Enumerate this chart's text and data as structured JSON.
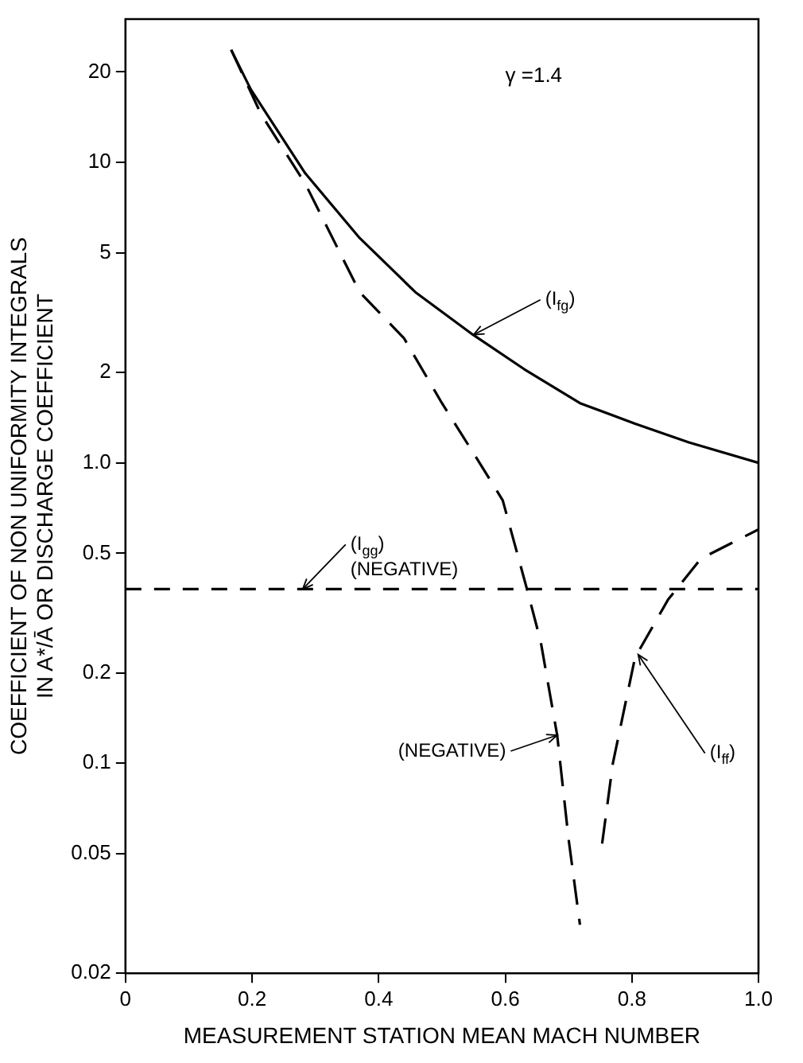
{
  "chart_data": {
    "type": "line",
    "xlabel": "MEASUREMENT STATION MEAN MACH NUMBER",
    "ylabel": "COEFFICIENT OF NON UNIFORMITY INTEGRALS IN A*/Ā OR DISCHARGE COEFFICIENT",
    "log": "y",
    "xlim": [
      0,
      1
    ],
    "ylim": [
      0.02,
      30
    ],
    "xticks": [
      0,
      0.2,
      0.4,
      0.6,
      0.8,
      {
        "value": 1,
        "label": "1.0"
      }
    ],
    "yticks": [
      0.02,
      0.05,
      0.1,
      0.2,
      0.5,
      {
        "value": 1,
        "label": "1.0"
      },
      2,
      5,
      10,
      20
    ],
    "grid": false,
    "legend": false,
    "marker": "none",
    "series": [
      {
        "color": "#000000",
        "line_style": "solid",
        "x": [
          0.167,
          0.198,
          0.284,
          0.37,
          0.458,
          0.549,
          0.63,
          0.718,
          0.805,
          0.89,
          1.0
        ],
        "values": [
          23.7,
          17.5,
          9.2,
          5.6,
          3.7,
          2.67,
          2.05,
          1.58,
          1.35,
          1.17,
          1.0
        ]
      },
      {
        "color": "#000000",
        "line_style": "dashed",
        "x": [
          0.167,
          0.214,
          0.284,
          0.37,
          0.44,
          0.5,
          0.562,
          0.596,
          0.635,
          0.656,
          0.682,
          0.7,
          0.718,
          0.735,
          0.753,
          0.77,
          0.805,
          0.857,
          0.909,
          1.0
        ],
        "values": [
          23.7,
          14.5,
          8.5,
          3.7,
          2.6,
          1.58,
          0.98,
          0.75,
          0.375,
          0.254,
          0.124,
          0.056,
          0.029,
          null,
          0.054,
          0.1,
          0.225,
          0.35,
          0.48,
          0.6
        ]
      },
      {
        "color": "#000000",
        "line_style": "dotted",
        "x": [
          0,
          1.0
        ],
        "values": [
          0.38,
          0.38
        ]
      }
    ],
    "annotations": [
      "γ =1.4",
      {
        "text": "(I$_{fg}$)",
        "x": 0.55,
        "y": 2.67
      },
      {
        "text": "(I$_{gg}$)",
        "x": 0.28,
        "y": 0.38
      },
      {
        "text": "(NEGATIVE)",
        "x": 0.3,
        "y": 0.38
      },
      {
        "text": "(NEGATIVE)",
        "x": 0.682,
        "y": 0.124
      },
      {
        "text": "(I$_{ff}$)",
        "x": 0.81,
        "y": 0.23
      }
    ]
  }
}
